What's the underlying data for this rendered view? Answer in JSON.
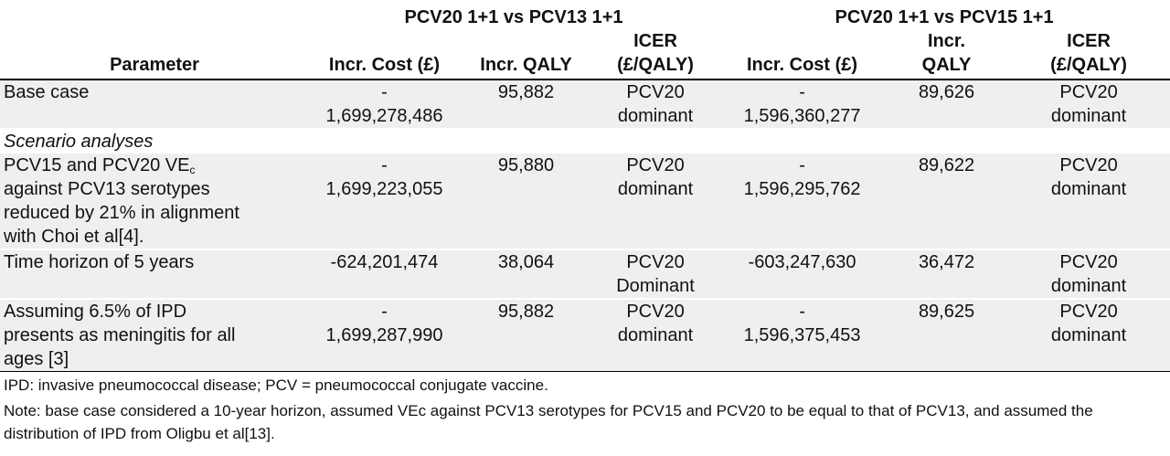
{
  "groups": [
    "PCV20 1+1 vs PCV13 1+1",
    "PCV20 1+1 vs PCV15 1+1"
  ],
  "headers": {
    "parameter": "Parameter",
    "incr_cost_1": "Incr. Cost (£)",
    "incr_qaly_1": "Incr. QALY",
    "icer_1_line1": "ICER",
    "icer_1_line2": "(£/QALY)",
    "incr_cost_2": "Incr. Cost (£)",
    "incr_qaly_2_line1": "Incr.",
    "incr_qaly_2_line2": "QALY",
    "icer_2_line1": "ICER",
    "icer_2_line2": "(£/QALY)"
  },
  "rows": [
    {
      "param": [
        "Base case"
      ],
      "cost1": [
        "-",
        "1,699,278,486"
      ],
      "qaly1": "95,882",
      "icer1": [
        "PCV20",
        "dominant"
      ],
      "cost2": [
        "-",
        "1,596,360,277"
      ],
      "qaly2": "89,626",
      "icer2": [
        "PCV20",
        "dominant"
      ]
    },
    {
      "section": "Scenario analyses"
    },
    {
      "param_pre": "PCV15 and PCV20 VE",
      "param_sub": "c",
      "param_rest": [
        "against PCV13 serotypes",
        "reduced by 21% in alignment",
        "with Choi et al[4]."
      ],
      "cost1": [
        "-",
        "1,699,223,055"
      ],
      "qaly1": "95,880",
      "icer1": [
        "PCV20",
        "dominant"
      ],
      "cost2": [
        "-",
        "1,596,295,762"
      ],
      "qaly2": "89,622",
      "icer2": [
        "PCV20",
        "dominant"
      ]
    },
    {
      "param": [
        "Time horizon of 5 years"
      ],
      "cost1": [
        "-624,201,474"
      ],
      "qaly1": "38,064",
      "icer1": [
        "PCV20",
        "Dominant"
      ],
      "cost2": [
        "-603,247,630"
      ],
      "qaly2": "36,472",
      "icer2": [
        "PCV20",
        "dominant"
      ]
    },
    {
      "param": [
        "Assuming 6.5% of IPD",
        "presents as meningitis for all",
        "ages [3]"
      ],
      "cost1": [
        "-",
        "1,699,287,990"
      ],
      "qaly1": "95,882",
      "icer1": [
        "PCV20",
        "dominant"
      ],
      "cost2": [
        "-",
        "1,596,375,453"
      ],
      "qaly2": "89,625",
      "icer2": [
        "PCV20",
        "dominant"
      ]
    }
  ],
  "footnotes": [
    "IPD: invasive pneumococcal disease; PCV = pneumococcal conjugate vaccine.",
    "Note: base case considered a 10-year horizon, assumed VEc against PCV13 serotypes for PCV15 and PCV20 to be equal to that of PCV13, and assumed the distribution of IPD from Oligbu et al[13]."
  ]
}
